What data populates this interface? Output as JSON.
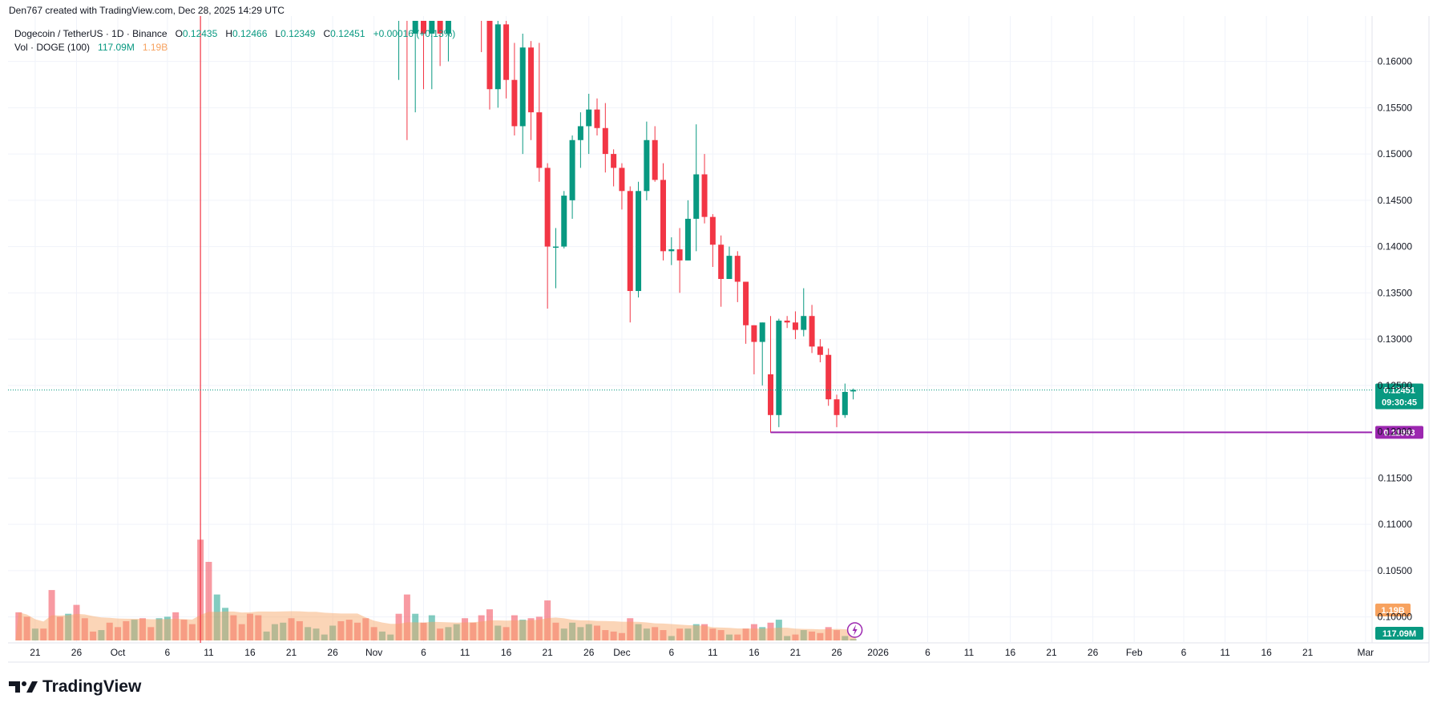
{
  "header": {
    "credit": "Den767 created with TradingView.com, Dec 28, 2025 14:29 UTC"
  },
  "legend": {
    "symbol": "Dogecoin / TetherUS · 1D · Binance",
    "o_label": "O",
    "o": "0.12435",
    "h_label": "H",
    "h": "0.12466",
    "l_label": "L",
    "l": "0.12349",
    "c_label": "C",
    "c": "0.12451",
    "change": "+0.00016 (+0.13%)",
    "vol_label": "Vol · DOGE (100)",
    "vol_value": "117.09M",
    "vol_ma": "1.19B"
  },
  "brand": {
    "name": "TradingView"
  },
  "colors": {
    "up": "#089981",
    "down": "#f23645",
    "line": "#9c27b0",
    "vol_area": "#f7a25f",
    "badge_vol": "#f7a25f",
    "badge_price": "#089981",
    "marker": "#9c27b0"
  },
  "chart_data": {
    "type": "candlestick",
    "title": "Dogecoin / TetherUS · 1D · Binance",
    "ylim": [
      0.0978,
      0.1649
    ],
    "y_ticks": [
      "0.16000",
      "0.15500",
      "0.15000",
      "0.14500",
      "0.14000",
      "0.13500",
      "0.13000",
      "0.12500",
      "0.12000",
      "0.11500",
      "0.11000",
      "0.10500",
      "0.10000"
    ],
    "x_ticks": [
      "21",
      "26",
      "Oct",
      "6",
      "11",
      "16",
      "21",
      "26",
      "Nov",
      "6",
      "11",
      "16",
      "21",
      "26",
      "Dec",
      "6",
      "11",
      "16",
      "21",
      "26",
      "2026",
      "6",
      "11",
      "16",
      "21",
      "26",
      "Feb",
      "6",
      "11",
      "16",
      "21",
      "Mar"
    ],
    "current_price": {
      "value": 0.12451,
      "label": "0.12451",
      "countdown": "09:30:45"
    },
    "support_line": {
      "value": 0.11993,
      "label": "0.11993",
      "from": "Dec 18"
    },
    "event_line": {
      "date": "Oct 10"
    },
    "volume_badge": {
      "label": "117.09M"
    },
    "volume_ma_badge": {
      "label": "1.19B"
    },
    "candles": [
      {
        "d": "Nov 03",
        "o": 0.165,
        "h": 0.165,
        "l": 0.158,
        "c": 0.165
      },
      {
        "d": "Nov 04",
        "o": 0.165,
        "h": 0.165,
        "l": 0.1515,
        "c": 0.1645
      },
      {
        "d": "Nov 05",
        "o": 0.163,
        "h": 0.165,
        "l": 0.1545,
        "c": 0.165
      },
      {
        "d": "Nov 06",
        "o": 0.1645,
        "h": 0.165,
        "l": 0.157,
        "c": 0.163
      },
      {
        "d": "Nov 07",
        "o": 0.163,
        "h": 0.165,
        "l": 0.157,
        "c": 0.165
      },
      {
        "d": "Nov 08",
        "o": 0.165,
        "h": 0.165,
        "l": 0.1595,
        "c": 0.163
      },
      {
        "d": "Nov 09",
        "o": 0.163,
        "h": 0.165,
        "l": 0.16,
        "c": 0.165
      },
      {
        "d": "Nov 13",
        "o": 0.165,
        "h": 0.165,
        "l": 0.161,
        "c": 0.1645
      },
      {
        "d": "Nov 14",
        "o": 0.1645,
        "h": 0.165,
        "l": 0.1548,
        "c": 0.157
      },
      {
        "d": "Nov 15",
        "o": 0.157,
        "h": 0.165,
        "l": 0.155,
        "c": 0.164
      },
      {
        "d": "Nov 16",
        "o": 0.164,
        "h": 0.165,
        "l": 0.156,
        "c": 0.158
      },
      {
        "d": "Nov 17",
        "o": 0.158,
        "h": 0.162,
        "l": 0.152,
        "c": 0.153
      },
      {
        "d": "Nov 18",
        "o": 0.153,
        "h": 0.163,
        "l": 0.15,
        "c": 0.1615
      },
      {
        "d": "Nov 19",
        "o": 0.1615,
        "h": 0.1622,
        "l": 0.1515,
        "c": 0.1545
      },
      {
        "d": "Nov 20",
        "o": 0.1545,
        "h": 0.162,
        "l": 0.147,
        "c": 0.1485
      },
      {
        "d": "Nov 21",
        "o": 0.1485,
        "h": 0.149,
        "l": 0.1333,
        "c": 0.14
      },
      {
        "d": "Nov 22",
        "o": 0.14,
        "h": 0.142,
        "l": 0.1355,
        "c": 0.14
      },
      {
        "d": "Nov 23",
        "o": 0.14,
        "h": 0.146,
        "l": 0.1398,
        "c": 0.1455
      },
      {
        "d": "Nov 24",
        "o": 0.145,
        "h": 0.152,
        "l": 0.143,
        "c": 0.1515
      },
      {
        "d": "Nov 25",
        "o": 0.1515,
        "h": 0.1545,
        "l": 0.1485,
        "c": 0.153
      },
      {
        "d": "Nov 26",
        "o": 0.153,
        "h": 0.1565,
        "l": 0.15,
        "c": 0.1548
      },
      {
        "d": "Nov 27",
        "o": 0.1548,
        "h": 0.156,
        "l": 0.152,
        "c": 0.1528
      },
      {
        "d": "Nov 28",
        "o": 0.1528,
        "h": 0.1555,
        "l": 0.148,
        "c": 0.15
      },
      {
        "d": "Nov 29",
        "o": 0.15,
        "h": 0.1505,
        "l": 0.1465,
        "c": 0.1485
      },
      {
        "d": "Nov 30",
        "o": 0.1485,
        "h": 0.149,
        "l": 0.144,
        "c": 0.146
      },
      {
        "d": "Dec 01",
        "o": 0.146,
        "h": 0.1465,
        "l": 0.1318,
        "c": 0.1352
      },
      {
        "d": "Dec 02",
        "o": 0.1352,
        "h": 0.147,
        "l": 0.1345,
        "c": 0.146
      },
      {
        "d": "Dec 03",
        "o": 0.146,
        "h": 0.1535,
        "l": 0.145,
        "c": 0.1515
      },
      {
        "d": "Dec 04",
        "o": 0.1515,
        "h": 0.153,
        "l": 0.147,
        "c": 0.1472
      },
      {
        "d": "Dec 05",
        "o": 0.1472,
        "h": 0.149,
        "l": 0.1385,
        "c": 0.1395
      },
      {
        "d": "Dec 06",
        "o": 0.1395,
        "h": 0.141,
        "l": 0.138,
        "c": 0.1397
      },
      {
        "d": "Dec 07",
        "o": 0.1397,
        "h": 0.142,
        "l": 0.135,
        "c": 0.1385
      },
      {
        "d": "Dec 08",
        "o": 0.1385,
        "h": 0.145,
        "l": 0.1385,
        "c": 0.143
      },
      {
        "d": "Dec 09",
        "o": 0.143,
        "h": 0.1532,
        "l": 0.1395,
        "c": 0.1478
      },
      {
        "d": "Dec 10",
        "o": 0.1478,
        "h": 0.15,
        "l": 0.1425,
        "c": 0.1432
      },
      {
        "d": "Dec 11",
        "o": 0.1432,
        "h": 0.1435,
        "l": 0.1378,
        "c": 0.1402
      },
      {
        "d": "Dec 12",
        "o": 0.1402,
        "h": 0.1412,
        "l": 0.1335,
        "c": 0.1365
      },
      {
        "d": "Dec 13",
        "o": 0.1365,
        "h": 0.14,
        "l": 0.1365,
        "c": 0.139
      },
      {
        "d": "Dec 14",
        "o": 0.139,
        "h": 0.1395,
        "l": 0.134,
        "c": 0.1362
      },
      {
        "d": "Dec 15",
        "o": 0.1362,
        "h": 0.1362,
        "l": 0.1295,
        "c": 0.1315
      },
      {
        "d": "Dec 16",
        "o": 0.1315,
        "h": 0.1315,
        "l": 0.1262,
        "c": 0.1297
      },
      {
        "d": "Dec 17",
        "o": 0.1297,
        "h": 0.1318,
        "l": 0.125,
        "c": 0.1318
      },
      {
        "d": "Dec 18",
        "o": 0.1262,
        "h": 0.1325,
        "l": 0.1199,
        "c": 0.1218
      },
      {
        "d": "Dec 19",
        "o": 0.1218,
        "h": 0.1322,
        "l": 0.1205,
        "c": 0.132
      },
      {
        "d": "Dec 20",
        "o": 0.132,
        "h": 0.1325,
        "l": 0.1312,
        "c": 0.1318
      },
      {
        "d": "Dec 21",
        "o": 0.1318,
        "h": 0.133,
        "l": 0.13,
        "c": 0.131
      },
      {
        "d": "Dec 22",
        "o": 0.131,
        "h": 0.1355,
        "l": 0.1303,
        "c": 0.1325
      },
      {
        "d": "Dec 23",
        "o": 0.1325,
        "h": 0.1337,
        "l": 0.1285,
        "c": 0.1292
      },
      {
        "d": "Dec 24",
        "o": 0.1292,
        "h": 0.13,
        "l": 0.1275,
        "c": 0.1283
      },
      {
        "d": "Dec 25",
        "o": 0.1283,
        "h": 0.129,
        "l": 0.1228,
        "c": 0.1235
      },
      {
        "d": "Dec 26",
        "o": 0.1235,
        "h": 0.124,
        "l": 0.1205,
        "c": 0.1218
      },
      {
        "d": "Dec 27",
        "o": 0.1218,
        "h": 0.1252,
        "l": 0.1215,
        "c": 0.1243
      },
      {
        "d": "Dec 28",
        "o": 0.12435,
        "h": 0.12466,
        "l": 0.12349,
        "c": 0.12451
      }
    ],
    "volume": [
      {
        "d": "Sep 18",
        "v": 0.95,
        "up": false
      },
      {
        "d": "Sep 19",
        "v": 0.8,
        "up": false
      },
      {
        "d": "Sep 20",
        "v": 0.4,
        "up": true
      },
      {
        "d": "Sep 21",
        "v": 0.4,
        "up": false
      },
      {
        "d": "Sep 22",
        "v": 1.7,
        "up": false
      },
      {
        "d": "Sep 23",
        "v": 0.8,
        "up": false
      },
      {
        "d": "Sep 24",
        "v": 0.9,
        "up": true
      },
      {
        "d": "Sep 25",
        "v": 1.2,
        "up": false
      },
      {
        "d": "Sep 26",
        "v": 0.75,
        "up": false
      },
      {
        "d": "Sep 27",
        "v": 0.3,
        "up": false
      },
      {
        "d": "Sep 28",
        "v": 0.35,
        "up": true
      },
      {
        "d": "Sep 29",
        "v": 0.6,
        "up": false
      },
      {
        "d": "Sep 30",
        "v": 0.45,
        "up": false
      },
      {
        "d": "Oct 01",
        "v": 0.65,
        "up": false
      },
      {
        "d": "Oct 02",
        "v": 0.7,
        "up": true
      },
      {
        "d": "Oct 03",
        "v": 0.75,
        "up": false
      },
      {
        "d": "Oct 04",
        "v": 0.45,
        "up": false
      },
      {
        "d": "Oct 05",
        "v": 0.75,
        "up": true
      },
      {
        "d": "Oct 06",
        "v": 0.8,
        "up": true
      },
      {
        "d": "Oct 07",
        "v": 0.95,
        "up": false
      },
      {
        "d": "Oct 08",
        "v": 0.7,
        "up": false
      },
      {
        "d": "Oct 09",
        "v": 0.55,
        "up": false
      },
      {
        "d": "Oct 10",
        "v": 3.4,
        "up": false
      },
      {
        "d": "Oct 11",
        "v": 2.65,
        "up": false
      },
      {
        "d": "Oct 12",
        "v": 1.55,
        "up": true
      },
      {
        "d": "Oct 13",
        "v": 1.1,
        "up": true
      },
      {
        "d": "Oct 14",
        "v": 0.85,
        "up": false
      },
      {
        "d": "Oct 15",
        "v": 0.55,
        "up": false
      },
      {
        "d": "Oct 16",
        "v": 0.9,
        "up": false
      },
      {
        "d": "Oct 17",
        "v": 0.85,
        "up": false
      },
      {
        "d": "Oct 18",
        "v": 0.3,
        "up": true
      },
      {
        "d": "Oct 19",
        "v": 0.55,
        "up": true
      },
      {
        "d": "Oct 20",
        "v": 0.6,
        "up": true
      },
      {
        "d": "Oct 21",
        "v": 0.75,
        "up": false
      },
      {
        "d": "Oct 22",
        "v": 0.65,
        "up": false
      },
      {
        "d": "Oct 23",
        "v": 0.45,
        "up": true
      },
      {
        "d": "Oct 24",
        "v": 0.4,
        "up": true
      },
      {
        "d": "Oct 25",
        "v": 0.2,
        "up": true
      },
      {
        "d": "Oct 26",
        "v": 0.5,
        "up": true
      },
      {
        "d": "Oct 27",
        "v": 0.65,
        "up": false
      },
      {
        "d": "Oct 28",
        "v": 0.7,
        "up": false
      },
      {
        "d": "Oct 29",
        "v": 0.6,
        "up": false
      },
      {
        "d": "Oct 30",
        "v": 0.75,
        "up": false
      },
      {
        "d": "Oct 31",
        "v": 0.45,
        "up": false
      },
      {
        "d": "Nov 01",
        "v": 0.3,
        "up": true
      },
      {
        "d": "Nov 02",
        "v": 0.2,
        "up": true
      },
      {
        "d": "Nov 03",
        "v": 0.9,
        "up": false
      },
      {
        "d": "Nov 04",
        "v": 1.55,
        "up": false
      },
      {
        "d": "Nov 05",
        "v": 0.9,
        "up": true
      },
      {
        "d": "Nov 06",
        "v": 0.6,
        "up": false
      },
      {
        "d": "Nov 07",
        "v": 0.85,
        "up": true
      },
      {
        "d": "Nov 08",
        "v": 0.4,
        "up": false
      },
      {
        "d": "Nov 09",
        "v": 0.45,
        "up": true
      },
      {
        "d": "Nov 10",
        "v": 0.55,
        "up": true
      },
      {
        "d": "Nov 11",
        "v": 0.75,
        "up": false
      },
      {
        "d": "Nov 12",
        "v": 0.6,
        "up": false
      },
      {
        "d": "Nov 13",
        "v": 0.85,
        "up": false
      },
      {
        "d": "Nov 14",
        "v": 1.05,
        "up": false
      },
      {
        "d": "Nov 15",
        "v": 0.5,
        "up": true
      },
      {
        "d": "Nov 16",
        "v": 0.45,
        "up": false
      },
      {
        "d": "Nov 17",
        "v": 0.85,
        "up": false
      },
      {
        "d": "Nov 18",
        "v": 0.7,
        "up": true
      },
      {
        "d": "Nov 19",
        "v": 0.75,
        "up": false
      },
      {
        "d": "Nov 20",
        "v": 0.8,
        "up": false
      },
      {
        "d": "Nov 21",
        "v": 1.35,
        "up": false
      },
      {
        "d": "Nov 22",
        "v": 0.6,
        "up": false
      },
      {
        "d": "Nov 23",
        "v": 0.4,
        "up": true
      },
      {
        "d": "Nov 24",
        "v": 0.6,
        "up": true
      },
      {
        "d": "Nov 25",
        "v": 0.45,
        "up": true
      },
      {
        "d": "Nov 26",
        "v": 0.55,
        "up": true
      },
      {
        "d": "Nov 27",
        "v": 0.5,
        "up": false
      },
      {
        "d": "Nov 28",
        "v": 0.35,
        "up": false
      },
      {
        "d": "Nov 29",
        "v": 0.3,
        "up": false
      },
      {
        "d": "Nov 30",
        "v": 0.25,
        "up": false
      },
      {
        "d": "Dec 01",
        "v": 0.75,
        "up": false
      },
      {
        "d": "Dec 02",
        "v": 0.55,
        "up": true
      },
      {
        "d": "Dec 03",
        "v": 0.4,
        "up": true
      },
      {
        "d": "Dec 04",
        "v": 0.45,
        "up": false
      },
      {
        "d": "Dec 05",
        "v": 0.35,
        "up": false
      },
      {
        "d": "Dec 06",
        "v": 0.15,
        "up": true
      },
      {
        "d": "Dec 07",
        "v": 0.4,
        "up": false
      },
      {
        "d": "Dec 08",
        "v": 0.4,
        "up": true
      },
      {
        "d": "Dec 09",
        "v": 0.55,
        "up": true
      },
      {
        "d": "Dec 10",
        "v": 0.55,
        "up": false
      },
      {
        "d": "Dec 11",
        "v": 0.4,
        "up": false
      },
      {
        "d": "Dec 12",
        "v": 0.35,
        "up": false
      },
      {
        "d": "Dec 13",
        "v": 0.2,
        "up": true
      },
      {
        "d": "Dec 14",
        "v": 0.2,
        "up": false
      },
      {
        "d": "Dec 15",
        "v": 0.4,
        "up": false
      },
      {
        "d": "Dec 16",
        "v": 0.55,
        "up": false
      },
      {
        "d": "Dec 17",
        "v": 0.45,
        "up": true
      },
      {
        "d": "Dec 18",
        "v": 0.6,
        "up": false
      },
      {
        "d": "Dec 19",
        "v": 0.7,
        "up": true
      },
      {
        "d": "Dec 20",
        "v": 0.15,
        "up": true
      },
      {
        "d": "Dec 21",
        "v": 0.2,
        "up": false
      },
      {
        "d": "Dec 22",
        "v": 0.35,
        "up": true
      },
      {
        "d": "Dec 23",
        "v": 0.3,
        "up": false
      },
      {
        "d": "Dec 24",
        "v": 0.25,
        "up": false
      },
      {
        "d": "Dec 25",
        "v": 0.45,
        "up": false
      },
      {
        "d": "Dec 26",
        "v": 0.35,
        "up": false
      },
      {
        "d": "Dec 27",
        "v": 0.15,
        "up": true
      },
      {
        "d": "Dec 28",
        "v": 0.05,
        "up": true
      }
    ]
  }
}
